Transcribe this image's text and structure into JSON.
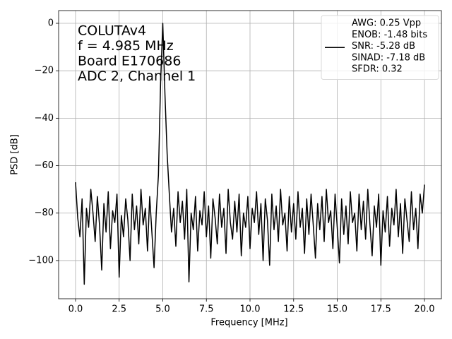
{
  "chart_data": {
    "type": "line",
    "xlabel": "Frequency [MHz]",
    "ylabel": "PSD [dB]",
    "annotations": [
      "COLUTAv4",
      "f = 4.985 MHz",
      "Board E170686",
      "ADC 2, Channel 1"
    ],
    "x": [
      0,
      0.125,
      0.25,
      0.375,
      0.5,
      0.625,
      0.75,
      0.875,
      1,
      1.125,
      1.25,
      1.375,
      1.5,
      1.625,
      1.75,
      1.875,
      2,
      2.125,
      2.25,
      2.375,
      2.5,
      2.625,
      2.75,
      2.875,
      3,
      3.125,
      3.25,
      3.375,
      3.5,
      3.625,
      3.75,
      3.875,
      4,
      4.125,
      4.25,
      4.375,
      4.5,
      4.625,
      4.75,
      4.875,
      5,
      5.125,
      5.25,
      5.375,
      5.5,
      5.625,
      5.75,
      5.875,
      6,
      6.125,
      6.25,
      6.375,
      6.5,
      6.625,
      6.75,
      6.875,
      7,
      7.125,
      7.25,
      7.375,
      7.5,
      7.625,
      7.75,
      7.875,
      8,
      8.125,
      8.25,
      8.375,
      8.5,
      8.625,
      8.75,
      8.875,
      9,
      9.125,
      9.25,
      9.375,
      9.5,
      9.625,
      9.75,
      9.875,
      10,
      10.125,
      10.25,
      10.375,
      10.5,
      10.625,
      10.75,
      10.875,
      11,
      11.125,
      11.25,
      11.375,
      11.5,
      11.625,
      11.75,
      11.875,
      12,
      12.125,
      12.25,
      12.375,
      12.5,
      12.625,
      12.75,
      12.875,
      13,
      13.125,
      13.25,
      13.375,
      13.5,
      13.625,
      13.75,
      13.875,
      14,
      14.125,
      14.25,
      14.375,
      14.5,
      14.625,
      14.75,
      14.875,
      15,
      15.125,
      15.25,
      15.375,
      15.5,
      15.625,
      15.75,
      15.875,
      16,
      16.125,
      16.25,
      16.375,
      16.5,
      16.625,
      16.75,
      16.875,
      17,
      17.125,
      17.25,
      17.375,
      17.5,
      17.625,
      17.75,
      17.875,
      18,
      18.125,
      18.25,
      18.375,
      18.5,
      18.625,
      18.75,
      18.875,
      19,
      19.125,
      19.25,
      19.375,
      19.5,
      19.625,
      19.75,
      19.875,
      20
    ],
    "series": [
      {
        "name": [
          "AWG: 0.25 Vpp",
          "ENOB: -1.48 bits",
          "SNR: -5.28 dB",
          "SINAD: -7.18 dB",
          "SFDR: 0.32"
        ],
        "color": "#000000",
        "values": [
          -67,
          -82,
          -90,
          -74,
          -110,
          -78,
          -86,
          -70,
          -80,
          -92,
          -73,
          -85,
          -104,
          -76,
          -88,
          -71,
          -95,
          -79,
          -84,
          -72,
          -107,
          -81,
          -90,
          -74,
          -83,
          -100,
          -72,
          -87,
          -77,
          -93,
          -70,
          -85,
          -78,
          -96,
          -73,
          -88,
          -103,
          -80,
          -64,
          -25,
          0,
          -30,
          -55,
          -72,
          -88,
          -78,
          -94,
          -71,
          -84,
          -75,
          -91,
          -70,
          -109,
          -80,
          -87,
          -73,
          -96,
          -79,
          -85,
          -71,
          -90,
          -77,
          -99,
          -74,
          -82,
          -93,
          -72,
          -86,
          -78,
          -97,
          -70,
          -84,
          -91,
          -75,
          -88,
          -72,
          -98,
          -80,
          -86,
          -73,
          -95,
          -78,
          -84,
          -71,
          -89,
          -76,
          -100,
          -74,
          -83,
          -102,
          -72,
          -87,
          -77,
          -92,
          -70,
          -85,
          -80,
          -96,
          -73,
          -88,
          -76,
          -91,
          -71,
          -86,
          -78,
          -97,
          -74,
          -89,
          -72,
          -85,
          -99,
          -76,
          -87,
          -73,
          -92,
          -70,
          -84,
          -79,
          -95,
          -72,
          -86,
          -101,
          -74,
          -89,
          -77,
          -93,
          -71,
          -84,
          -80,
          -96,
          -72,
          -87,
          -75,
          -91,
          -70,
          -85,
          -98,
          -77,
          -86,
          -72,
          -102,
          -79,
          -88,
          -73,
          -94,
          -78,
          -85,
          -70,
          -90,
          -76,
          -97,
          -74,
          -83,
          -92,
          -71,
          -87,
          -78,
          -95,
          -72,
          -80,
          -68
        ]
      }
    ],
    "xlim": [
      -0.97,
      20.97
    ],
    "ylim": [
      -116.1,
      5.36
    ],
    "xticks": [
      {
        "value": 0,
        "label": "0.0"
      },
      2.5,
      {
        "value": 5,
        "label": "5.0"
      },
      7.5,
      {
        "value": 10,
        "label": "10.0"
      },
      12.5,
      {
        "value": 15,
        "label": "15.0"
      },
      17.5,
      {
        "value": 20,
        "label": "20.0"
      }
    ],
    "yticks": [
      0,
      {
        "value": -20,
        "label": "−20"
      },
      {
        "value": -40,
        "label": "−40"
      },
      {
        "value": -60,
        "label": "−60"
      },
      {
        "value": -80,
        "label": "−80"
      },
      {
        "value": -100,
        "label": "−100"
      }
    ],
    "grid": true,
    "legend": "upper right"
  }
}
